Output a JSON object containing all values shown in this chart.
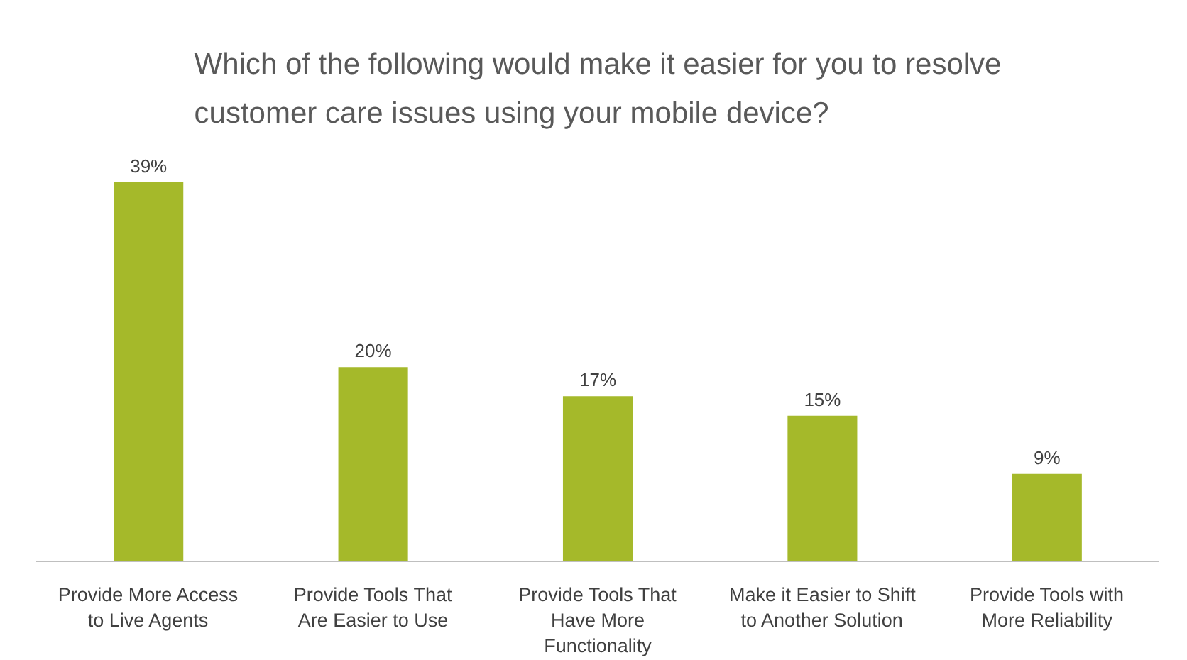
{
  "chart_data": {
    "type": "bar",
    "title": "Which of the following would make it easier for you to resolve customer care issues using your mobile device?",
    "categories": [
      "Provide More Access\nto Live Agents",
      "Provide Tools That\nAre Easier to Use",
      "Provide Tools That\nHave More\nFunctionality",
      "Make it Easier to Shift\nto Another Solution",
      "Provide Tools with\nMore Reliability"
    ],
    "values": [
      39,
      20,
      17,
      15,
      9
    ],
    "value_labels": [
      "39%",
      "20%",
      "17%",
      "15%",
      "9%"
    ],
    "color": "#a5b92a",
    "grid": false
  }
}
